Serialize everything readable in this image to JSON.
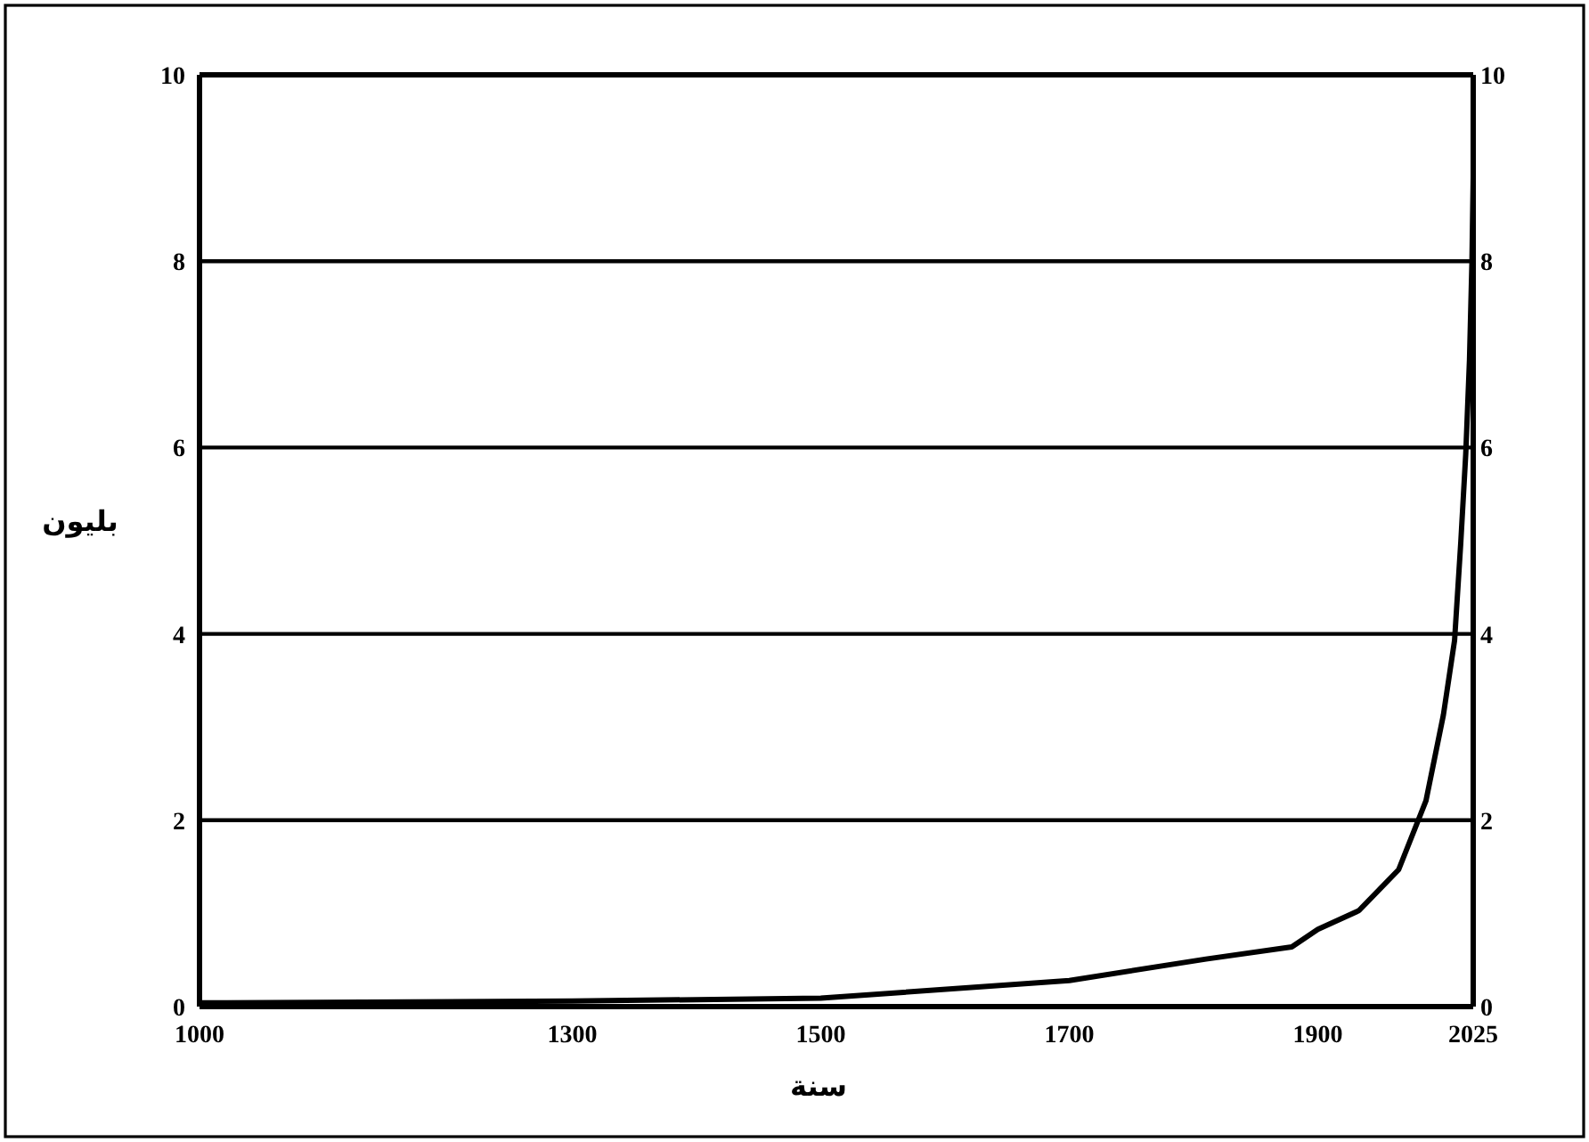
{
  "chart_data": {
    "type": "line",
    "xlabel": "سنة",
    "ylabel": "بليون",
    "x": [
      1000,
      1300,
      1500,
      1700,
      1810,
      1879,
      1900,
      1933,
      1965,
      1987,
      2001,
      2010,
      2015,
      2019,
      2022,
      2024,
      2025
    ],
    "series": [
      {
        "color": "#000000",
        "values": [
          0.04,
          0.06,
          0.09,
          0.28,
          0.51,
          0.64,
          0.83,
          1.03,
          1.47,
          2.21,
          3.13,
          3.93,
          4.98,
          5.93,
          6.94,
          8.0,
          8.9
        ]
      }
    ],
    "xlim": [
      1000,
      2025
    ],
    "xticks": [
      1000,
      1300,
      1500,
      1700,
      1900,
      2025
    ],
    "ylim": [
      0,
      10
    ],
    "yticks": [
      0,
      2,
      4,
      6,
      8,
      10
    ],
    "y2lim": [
      0,
      10
    ],
    "y2ticks": [
      0,
      2,
      4,
      6,
      8,
      10
    ],
    "grid": "y",
    "marker": "none",
    "line_style": "solid"
  }
}
